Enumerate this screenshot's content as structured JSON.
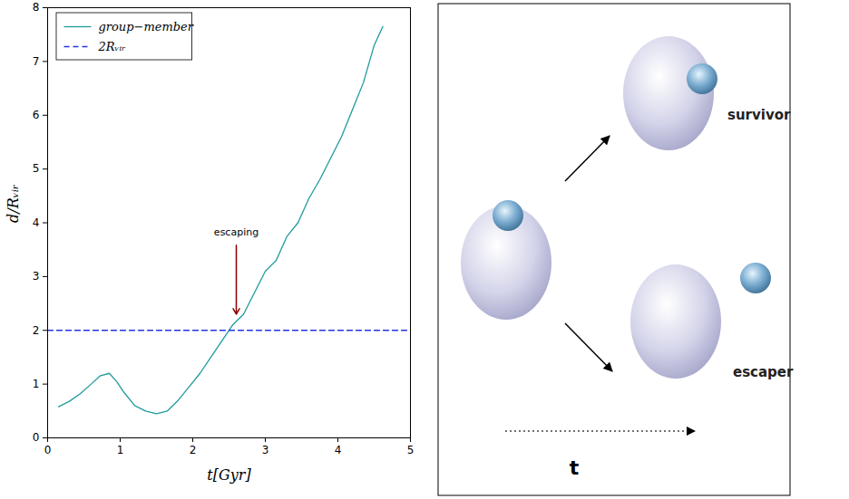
{
  "chart_data": {
    "type": "line",
    "x_label": "t[Gyr]",
    "y_label": "d/Rᵥᵢᵣ",
    "xlim": [
      0,
      5
    ],
    "xticks": [
      0,
      1,
      2,
      3,
      4,
      5
    ],
    "ylim": [
      0,
      8
    ],
    "yticks": [
      0,
      1,
      2,
      3,
      4,
      5,
      6,
      7,
      8
    ],
    "legend": "upper left",
    "series": [
      {
        "name": "group−member",
        "color": "#1f9b9b",
        "line_style": "solid",
        "x": [
          0.15,
          0.3,
          0.45,
          0.6,
          0.72,
          0.85,
          0.95,
          1.05,
          1.2,
          1.35,
          1.5,
          1.65,
          1.8,
          1.95,
          2.1,
          2.25,
          2.4,
          2.55,
          2.7,
          2.85,
          3.0,
          3.15,
          3.3,
          3.45,
          3.6,
          3.75,
          3.9,
          4.05,
          4.2,
          4.35,
          4.5,
          4.62
        ],
        "values": [
          0.58,
          0.68,
          0.82,
          1.0,
          1.15,
          1.2,
          1.05,
          0.85,
          0.6,
          0.5,
          0.45,
          0.5,
          0.7,
          0.95,
          1.2,
          1.5,
          1.8,
          2.1,
          2.3,
          2.7,
          3.1,
          3.3,
          3.75,
          4.0,
          4.45,
          4.8,
          5.2,
          5.6,
          6.1,
          6.6,
          7.3,
          7.65
        ]
      },
      {
        "name": "2Rᵥᵢᵣ",
        "color": "#2233dd",
        "line_style": "dashed",
        "x": [
          0,
          5
        ],
        "values": [
          2,
          2
        ]
      }
    ],
    "annotations": [
      {
        "text": "escaping",
        "x": 2.6,
        "y": 3.75,
        "arrow_x": 2.6,
        "arrow_y": 2.3,
        "color": "#8b0000"
      }
    ]
  },
  "diagram": {
    "start": {
      "label": null
    },
    "outcomes": [
      {
        "label": "survivor"
      },
      {
        "label": "escaper"
      }
    ],
    "time_label": "t"
  }
}
